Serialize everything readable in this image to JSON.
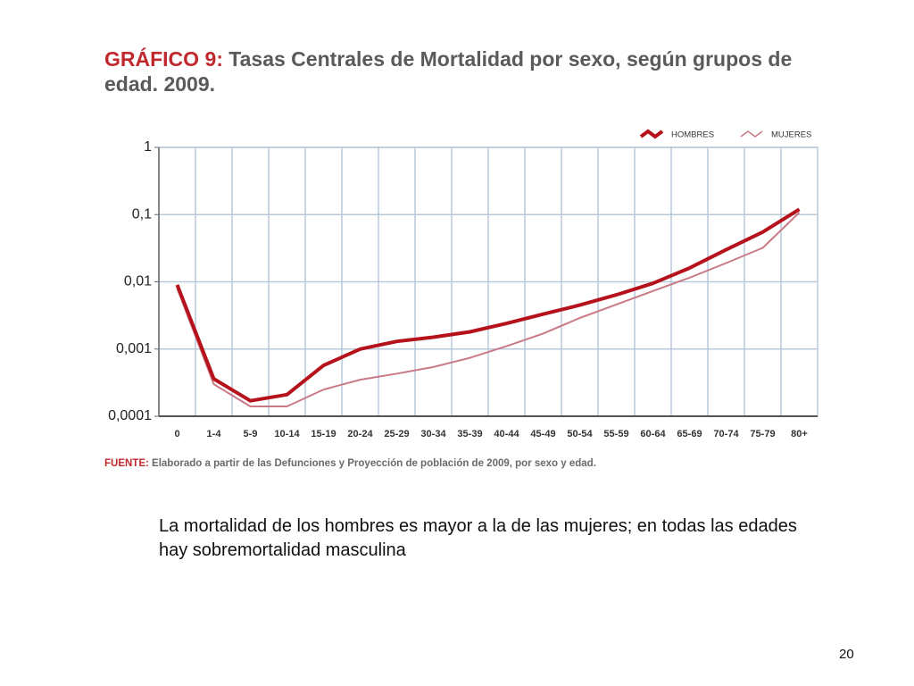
{
  "chart_data": {
    "type": "line",
    "title_label": "GRÁFICO 9:",
    "title": "Tasas Centrales de Mortalidad por sexo, según grupos de edad. 2009.",
    "source_label": "FUENTE:",
    "source": "Elaborado a partir de las Defunciones y Proyección de población de 2009, por sexo y edad.",
    "categories": [
      "0",
      "1-4",
      "5-9",
      "10-14",
      "15-19",
      "20-24",
      "25-29",
      "30-34",
      "35-39",
      "40-44",
      "45-49",
      "50-54",
      "55-59",
      "60-64",
      "65-69",
      "70-74",
      "75-79",
      "80+"
    ],
    "series": [
      {
        "name": "HOMBRES",
        "color": "#b5121b",
        "values": [
          0.009,
          0.00036,
          0.00017,
          0.00021,
          0.00057,
          0.001,
          0.0013,
          0.0015,
          0.0018,
          0.0024,
          0.0033,
          0.0045,
          0.0064,
          0.0095,
          0.016,
          0.03,
          0.055,
          0.12
        ]
      },
      {
        "name": "MUJERES",
        "color": "#c97a86",
        "values": [
          0.008,
          0.0003,
          0.00014,
          0.00014,
          0.00025,
          0.00035,
          0.00043,
          0.00054,
          0.00074,
          0.0011,
          0.0017,
          0.0029,
          0.0046,
          0.0073,
          0.0115,
          0.019,
          0.032,
          0.107
        ]
      }
    ],
    "ylim": [
      0.0001,
      1
    ],
    "yticks": [
      {
        "value": 0.0001,
        "label": "0,0001"
      },
      {
        "value": 0.001,
        "label": "0,001"
      },
      {
        "value": 0.01,
        "label": "0,01"
      },
      {
        "value": 0.1,
        "label": "0,1"
      },
      1
    ],
    "log_scale": true,
    "grid": true,
    "legend": "top-right"
  },
  "caption": "La mortalidad de los hombres es mayor a la de las mujeres; en todas las edades hay sobremortalidad masculina",
  "page_number": "20"
}
